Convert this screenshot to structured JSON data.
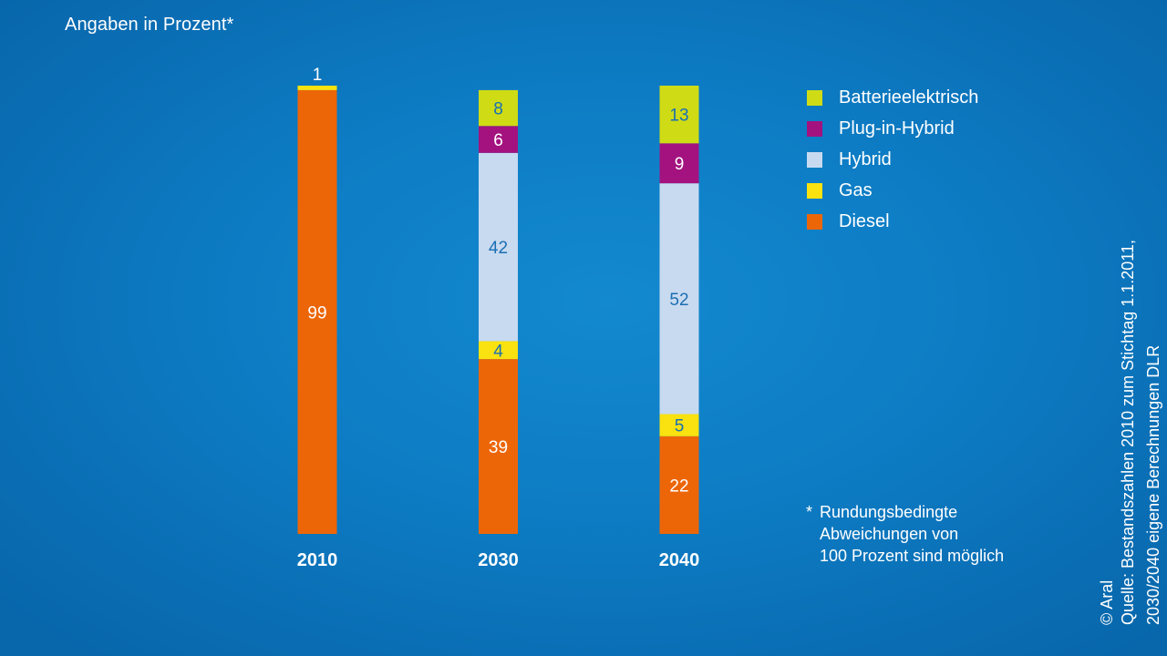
{
  "unit_label": "Angaben in Prozent*",
  "legend": [
    {
      "label": "Batterieelektrisch",
      "color": "#cfdb15"
    },
    {
      "label": "Plug-in-Hybrid",
      "color": "#a3127f"
    },
    {
      "label": "Hybrid",
      "color": "#c8daf0"
    },
    {
      "label": "Gas",
      "color": "#f9e20f"
    },
    {
      "label": "Diesel",
      "color": "#ec6608"
    }
  ],
  "footnote": {
    "marker": "*",
    "lines": [
      "Rundungsbedingte",
      "Abweichungen von",
      "100 Prozent sind möglich"
    ]
  },
  "source": {
    "lines": [
      "Quelle: Bestandszahlen 2010 zum Stichtag 1.1.2011,",
      "2030/2040 eigene Berechnungen DLR"
    ]
  },
  "copyright": "© Aral",
  "chart_data": {
    "type": "bar",
    "stacked": true,
    "ylabel": "Angaben in Prozent*",
    "categories": [
      "2010",
      "2030",
      "2040"
    ],
    "series": [
      {
        "name": "Diesel",
        "color": "#ec6608",
        "values": [
          99,
          39,
          22
        ],
        "label_color": "#ffffff"
      },
      {
        "name": "Gas",
        "color": "#f9e20f",
        "values": [
          1,
          4,
          5
        ],
        "label_color": "#1a6fb3"
      },
      {
        "name": "Hybrid",
        "color": "#c8daf0",
        "values": [
          0,
          42,
          52
        ],
        "label_color": "#1a6fb3"
      },
      {
        "name": "Plug-in-Hybrid",
        "color": "#a3127f",
        "values": [
          0,
          6,
          9
        ],
        "label_color": "#ffffff"
      },
      {
        "name": "Batterieelektrisch",
        "color": "#cfdb15",
        "values": [
          0,
          8,
          13
        ],
        "label_color": "#1a6fb3"
      }
    ],
    "ylim": [
      0,
      100
    ],
    "grid": false,
    "legend_position": "right"
  }
}
